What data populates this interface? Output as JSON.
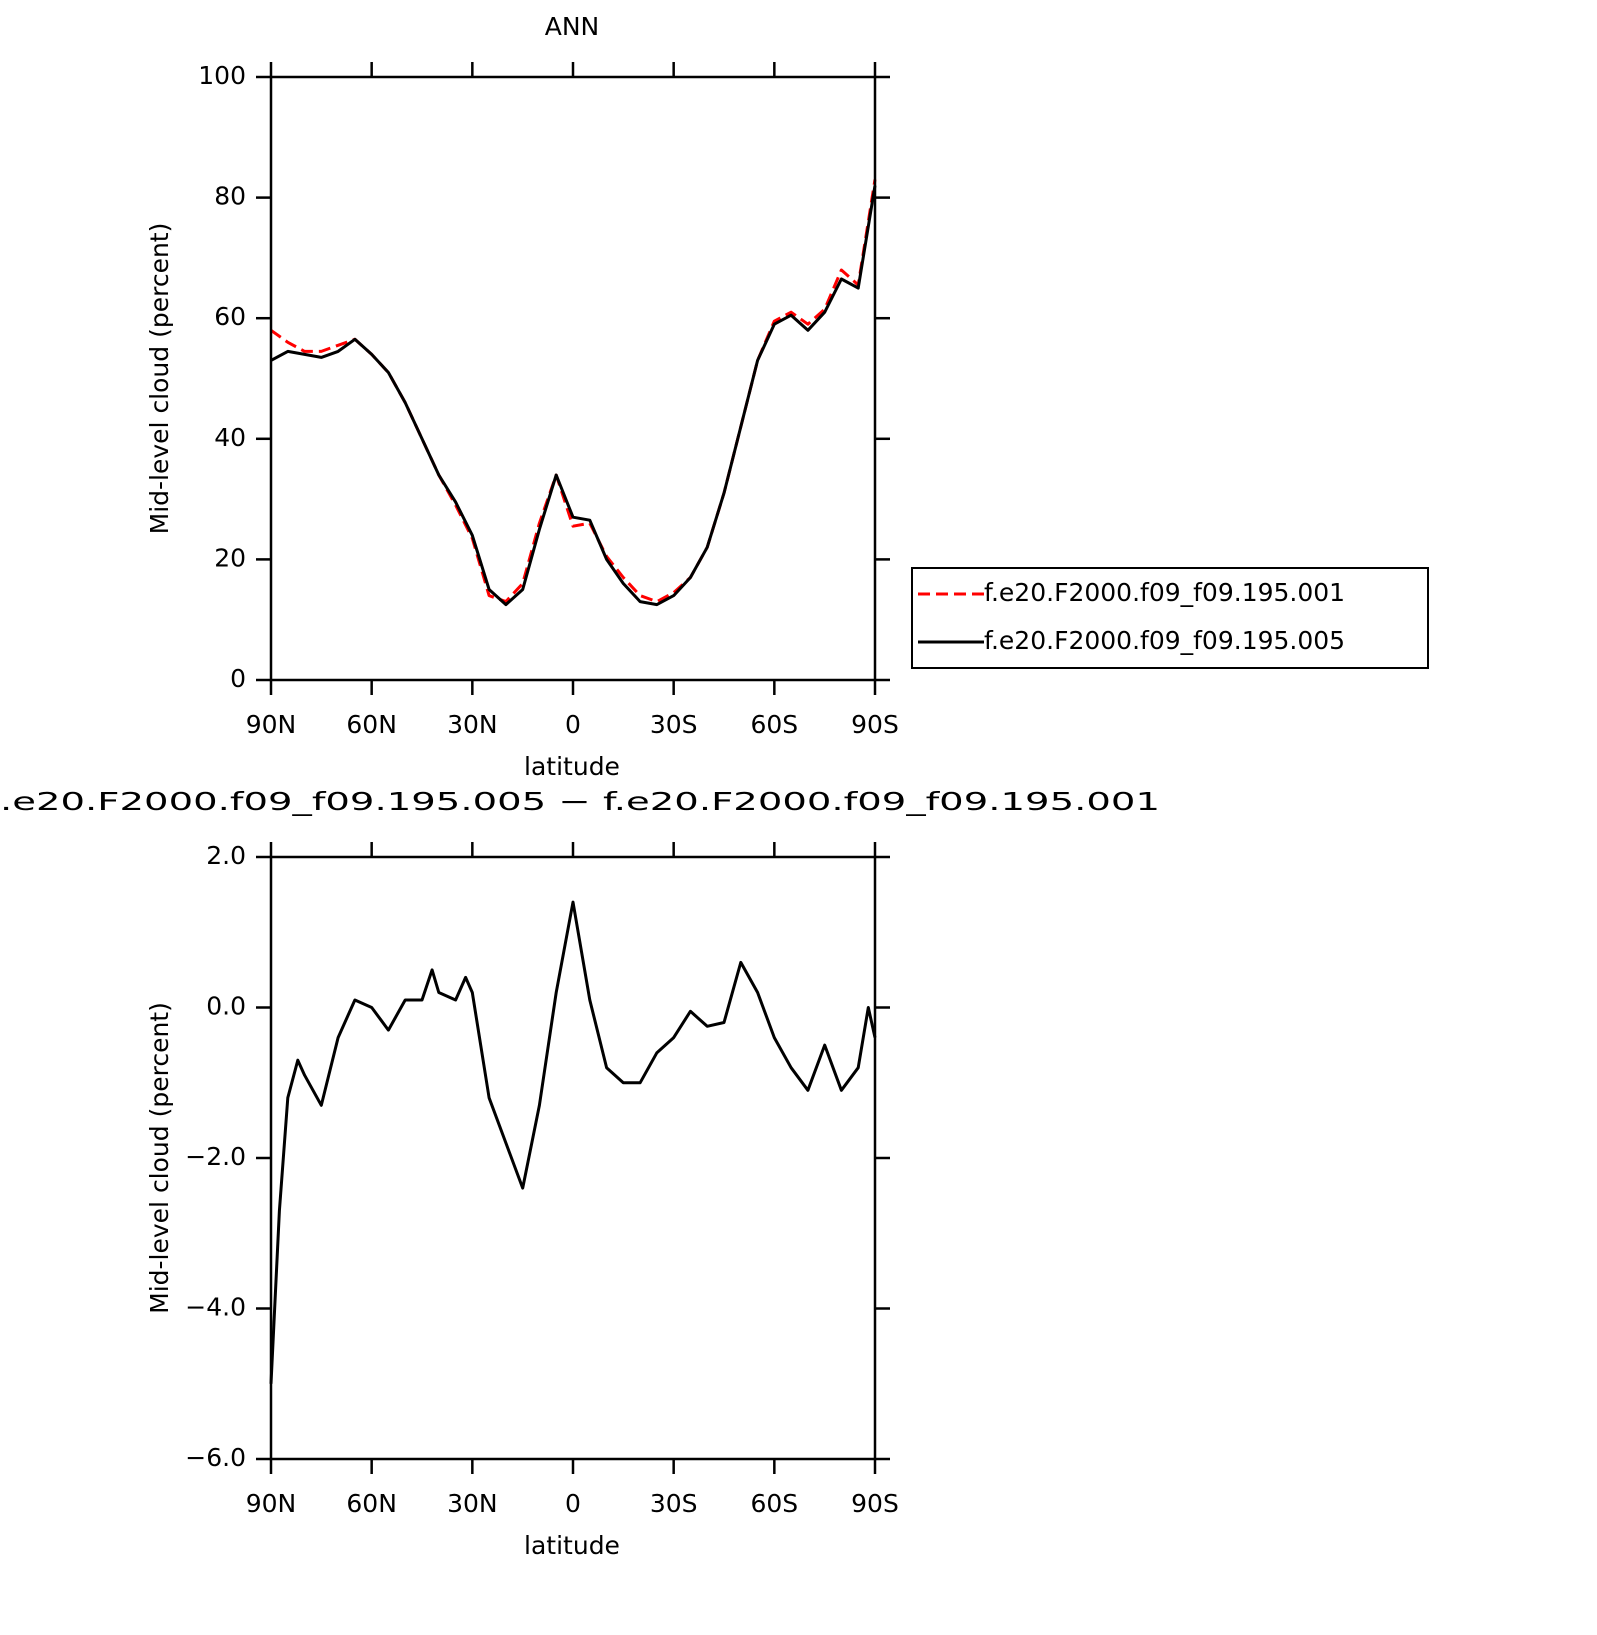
{
  "chart_data": [
    {
      "type": "line",
      "title": "ANN",
      "xlabel": "latitude",
      "ylabel": "Mid-level cloud (percent)",
      "x": [
        90,
        85,
        80,
        75,
        70,
        65,
        60,
        55,
        50,
        45,
        40,
        35,
        30,
        25,
        20,
        15,
        10,
        5,
        0,
        -5,
        -10,
        -15,
        -20,
        -25,
        -30,
        -35,
        -40,
        -45,
        -50,
        -55,
        -60,
        -65,
        -70,
        -75,
        -80,
        -85,
        -90
      ],
      "series": [
        {
          "name": "f.e20.F2000.f09_f09.195.001",
          "color": "#ff0000",
          "dash": true,
          "values": [
            58,
            56,
            54.5,
            54.5,
            55.5,
            56.5,
            54,
            51,
            46,
            40,
            34,
            29,
            23.5,
            14,
            13,
            16,
            26,
            34,
            25.5,
            26,
            20.5,
            17,
            14,
            13,
            14.5,
            17,
            22,
            31,
            42,
            53,
            59.5,
            61,
            59,
            61.5,
            68,
            65.5,
            83
          ]
        },
        {
          "name": "f.e20.F2000.f09_f09.195.005",
          "color": "#000000",
          "dash": false,
          "values": [
            53,
            54.5,
            54,
            53.5,
            54.5,
            56.5,
            54,
            51,
            46,
            40,
            34,
            29.5,
            24,
            15,
            12.5,
            15,
            25,
            34,
            27,
            26.5,
            20,
            16,
            13,
            12.5,
            14,
            17,
            22,
            31,
            42,
            53,
            59,
            60.5,
            58,
            61,
            66.5,
            65,
            82
          ]
        }
      ],
      "xlim": [
        90,
        -90
      ],
      "xticks": [
        {
          "value": 90,
          "label": "90N"
        },
        {
          "value": 60,
          "label": "60N"
        },
        {
          "value": 30,
          "label": "30N"
        },
        0,
        {
          "value": -30,
          "label": "30S"
        },
        {
          "value": -60,
          "label": "60S"
        },
        {
          "value": -90,
          "label": "90S"
        }
      ],
      "ylim": [
        0,
        100
      ],
      "yticks": [
        0,
        20,
        40,
        60,
        80,
        100
      ],
      "legend": "right"
    },
    {
      "type": "line",
      "title": ".e20.F2000.f09_f09.195.005 − f.e20.F2000.f09_f09.195.001",
      "xlabel": "latitude",
      "ylabel": "Mid-level cloud (percent)",
      "x": [
        90,
        87.5,
        85,
        82,
        80,
        75,
        70,
        65,
        60,
        55,
        50,
        45,
        42,
        40,
        35,
        32,
        30,
        25,
        20,
        15,
        10,
        5,
        0,
        -5,
        -10,
        -15,
        -20,
        -25,
        -30,
        -35,
        -40,
        -45,
        -50,
        -55,
        -60,
        -65,
        -70,
        -75,
        -80,
        -85,
        -88,
        -90
      ],
      "series": [
        {
          "color": "#000000",
          "dash": false,
          "values": [
            -5,
            -2.7,
            -1.2,
            -0.7,
            -0.9,
            -1.3,
            -0.4,
            0.1,
            0,
            -0.3,
            0.1,
            0.1,
            0.5,
            0.2,
            0.1,
            0.4,
            0.2,
            -1.2,
            -1.8,
            -2.4,
            -1.3,
            0.2,
            1.4,
            0.1,
            -0.8,
            -1,
            -1,
            -0.6,
            -0.4,
            -0.05,
            -0.25,
            -0.2,
            0.6,
            0.2,
            -0.4,
            -0.8,
            -1.1,
            -0.5,
            -1.1,
            -0.8,
            0,
            -0.4
          ]
        }
      ],
      "xlim": [
        90,
        -90
      ],
      "xticks": [
        {
          "value": 90,
          "label": "90N"
        },
        {
          "value": 60,
          "label": "60N"
        },
        {
          "value": 30,
          "label": "30N"
        },
        0,
        {
          "value": -30,
          "label": "30S"
        },
        {
          "value": -60,
          "label": "60S"
        },
        {
          "value": -90,
          "label": "90S"
        }
      ],
      "ylim": [
        -6,
        2
      ],
      "yticks": [
        {
          "value": -6,
          "label": "−6.0"
        },
        {
          "value": -4,
          "label": "−4.0"
        },
        {
          "value": -2,
          "label": "−2.0"
        },
        {
          "value": 0,
          "label": "0.0"
        },
        {
          "value": 2,
          "label": "2.0"
        }
      ]
    }
  ]
}
